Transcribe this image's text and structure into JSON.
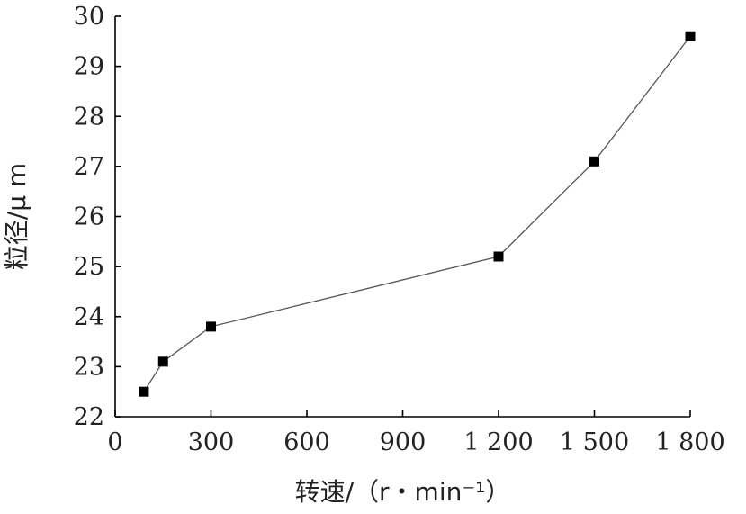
{
  "chart_data": {
    "type": "line",
    "title": "",
    "xlabel": "转速/（r・min⁻¹）",
    "ylabel": "粒径/μ m",
    "xlim": [
      0,
      1800
    ],
    "ylim": [
      22,
      30
    ],
    "x_ticks": [
      0,
      300,
      600,
      900,
      1200,
      1500,
      1800
    ],
    "x_tick_labels": [
      "0",
      "300",
      "600",
      "900",
      "1 200",
      "1 500",
      "1 800"
    ],
    "y_ticks": [
      22,
      23,
      24,
      25,
      26,
      27,
      28,
      29,
      30
    ],
    "y_tick_labels": [
      "22",
      "23",
      "24",
      "25",
      "26",
      "27",
      "28",
      "29",
      "30"
    ],
    "grid": false,
    "series": [
      {
        "marker": "square",
        "x": [
          90,
          150,
          300,
          1200,
          1500,
          1800
        ],
        "y": [
          22.5,
          23.1,
          23.8,
          25.2,
          27.1,
          29.6
        ]
      }
    ]
  }
}
